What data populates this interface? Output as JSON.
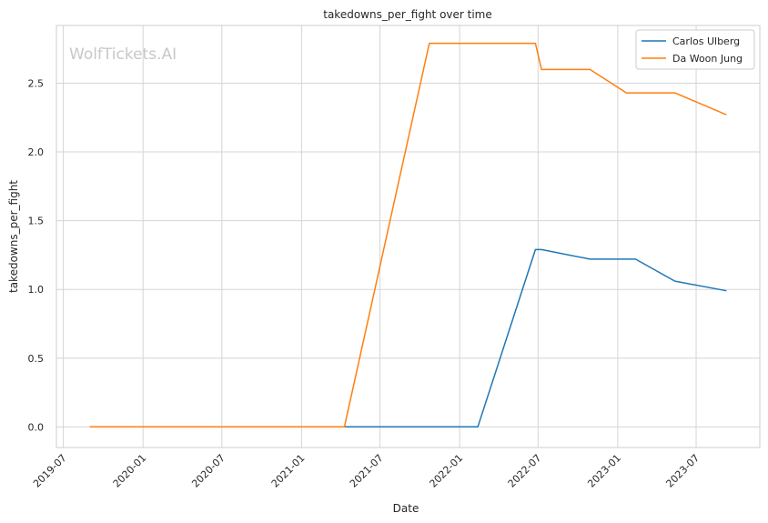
{
  "chart_data": {
    "type": "line",
    "title": "takedowns_per_fight over time",
    "xlabel": "Date",
    "ylabel": "takedowns_per_fight",
    "watermark": "WolfTickets.AI",
    "xlim": [
      "2019-06-15",
      "2023-11-25"
    ],
    "ylim": [
      -0.15,
      2.92
    ],
    "x_ticks": [
      "2019-07-01",
      "2020-01-01",
      "2020-07-01",
      "2021-01-01",
      "2021-07-01",
      "2022-01-01",
      "2022-07-01",
      "2023-01-01",
      "2023-07-01"
    ],
    "x_tick_labels": [
      "2019-07",
      "2020-01",
      "2020-07",
      "2021-01",
      "2021-07",
      "2022-01",
      "2022-07",
      "2023-01",
      "2023-07"
    ],
    "y_ticks": [
      0.0,
      0.5,
      1.0,
      1.5,
      2.0,
      2.5
    ],
    "y_tick_labels": [
      "0.0",
      "0.5",
      "1.0",
      "1.5",
      "2.0",
      "2.5"
    ],
    "grid": true,
    "legend_position": "top-right",
    "series": [
      {
        "name": "Carlos Ulberg",
        "color": "#1f77b4",
        "x": [
          "2021-03-06",
          "2022-02-12",
          "2022-06-25",
          "2022-07-09",
          "2022-10-29",
          "2023-02-11",
          "2023-05-13",
          "2023-09-09"
        ],
        "y": [
          0.0,
          0.0,
          1.29,
          1.29,
          1.22,
          1.22,
          1.06,
          0.99
        ]
      },
      {
        "name": "Da Woon Jung",
        "color": "#ff7f0e",
        "x": [
          "2019-08-31",
          "2021-04-10",
          "2021-10-23",
          "2022-06-25",
          "2022-07-09",
          "2022-10-29",
          "2023-01-21",
          "2023-05-13",
          "2023-09-09"
        ],
        "y": [
          0.0,
          0.0,
          2.79,
          2.79,
          2.6,
          2.6,
          2.43,
          2.43,
          2.27
        ]
      }
    ]
  }
}
